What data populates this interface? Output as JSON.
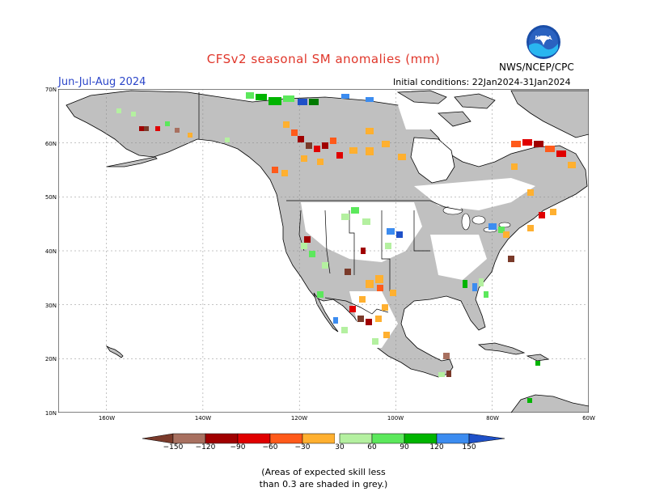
{
  "header": {
    "title": "CFSv2 seasonal SM anomalies (mm)",
    "period": "Jun-Jul-Aug 2024",
    "initial_conditions": "Initial conditions: 22Jan2024-31Jan2024",
    "org": "NWS/NCEP/CPC",
    "logo_text": "NOAA"
  },
  "axes": {
    "lat_labels": [
      "70N",
      "60N",
      "50N",
      "40N",
      "30N",
      "20N",
      "10N"
    ],
    "lon_labels": [
      "160W",
      "140W",
      "120W",
      "100W",
      "80W",
      "60W"
    ]
  },
  "legend": {
    "labels": [
      "−150",
      "−120",
      "−90",
      "−60",
      "−30",
      "30",
      "60",
      "90",
      "120",
      "150"
    ],
    "colors": [
      "#7a3a2a",
      "#a87060",
      "#a00000",
      "#e00000",
      "#ff5a1a",
      "#ffb030",
      "#ffffff",
      "#b4f0a0",
      "#5ce85c",
      "#00b400",
      "#007a00",
      "#3c8cf0",
      "#1e50c8"
    ]
  },
  "colors": {
    "land_grey": "#c0c0c0",
    "ocean": "#ffffff",
    "title": "#e0362a",
    "period": "#2c46c9"
  },
  "note": {
    "line1": "(Areas of expected skill less",
    "line2": "than 0.3 are shaded in grey.)"
  }
}
